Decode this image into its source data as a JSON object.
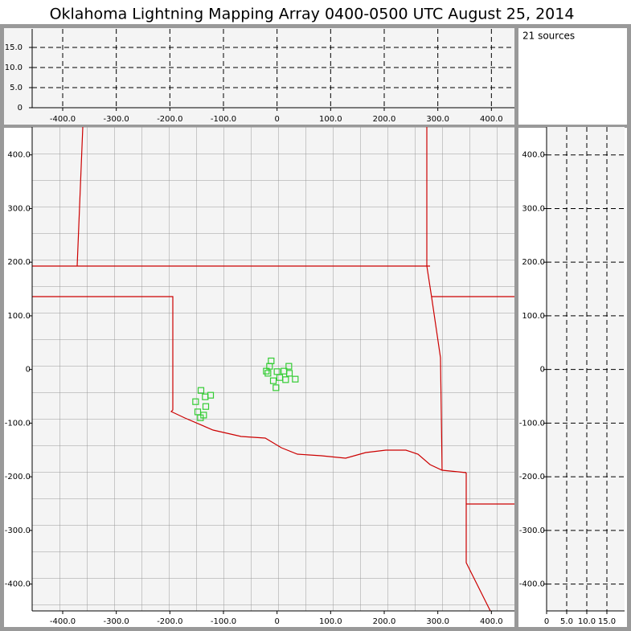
{
  "chart_data": [
    {
      "type": "scatter",
      "title": "Oklahoma Lightning Mapping Array   0400-0500 UTC  August 25, 2014",
      "annotation": "21 sources",
      "color": "#33cc33",
      "x": [
        -11,
        -14,
        -17,
        0,
        22,
        23,
        16,
        34,
        -7,
        -2,
        -20,
        13,
        5,
        -142,
        -134,
        -124,
        -152,
        -133,
        -148,
        -143,
        -137
      ],
      "y": [
        16,
        6,
        -7,
        -4,
        6,
        -7,
        -19,
        -18,
        -21,
        -34,
        -3,
        -3,
        -15,
        -39,
        -51,
        -48,
        -60,
        -69,
        -79,
        -90,
        -85
      ],
      "xlim": [
        -457,
        443
      ],
      "ylim": [
        -450,
        452
      ],
      "xticks": [
        {
          "value": -400,
          "label": "-400.0"
        },
        {
          "value": -300,
          "label": "-300.0"
        },
        {
          "value": -200,
          "label": "-200.0"
        },
        {
          "value": -100,
          "label": "-100.0"
        },
        0,
        {
          "value": 100,
          "label": "100.0"
        },
        {
          "value": 200,
          "label": "200.0"
        },
        {
          "value": 300,
          "label": "300.0"
        },
        {
          "value": 400,
          "label": "400.0"
        }
      ],
      "yticks": [
        {
          "value": -400,
          "label": "-400.0"
        },
        {
          "value": -300,
          "label": "-300.0"
        },
        {
          "value": -200,
          "label": "-200.0"
        },
        {
          "value": -100,
          "label": "-100.0"
        },
        0,
        {
          "value": 100,
          "label": "100.0"
        },
        {
          "value": 200,
          "label": "200.0"
        },
        {
          "value": 300,
          "label": "300.0"
        },
        {
          "value": 400,
          "label": "400.0"
        }
      ]
    },
    {
      "type": "scatter",
      "grid": true,
      "xlim": [
        -457,
        443
      ],
      "ylim": [
        0,
        19.6
      ],
      "xticks": [
        {
          "value": -400,
          "label": "-400.0"
        },
        {
          "value": -300,
          "label": "-300.0"
        },
        {
          "value": -200,
          "label": "-200.0"
        },
        {
          "value": -100,
          "label": "-100.0"
        },
        0,
        {
          "value": 100,
          "label": "100.0"
        },
        {
          "value": 200,
          "label": "200.0"
        },
        {
          "value": 300,
          "label": "300.0"
        },
        {
          "value": 400,
          "label": "400.0"
        }
      ],
      "yticks": [
        0,
        {
          "value": 5,
          "label": "5.0"
        },
        {
          "value": 10,
          "label": "10.0"
        },
        {
          "value": 15,
          "label": "15.0"
        }
      ]
    },
    {
      "type": "scatter",
      "grid": true,
      "xlim": [
        0,
        19.4
      ],
      "ylim": [
        -450,
        452
      ],
      "xticks": [
        0,
        {
          "value": 5,
          "label": "5.0"
        },
        {
          "value": 10,
          "label": "10.0"
        },
        {
          "value": 15,
          "label": "15.0"
        }
      ],
      "yticks": [
        {
          "value": -400,
          "label": "-400.0"
        },
        {
          "value": -300,
          "label": "-300.0"
        },
        {
          "value": -200,
          "label": "-200.0"
        },
        {
          "value": -100,
          "label": "-100.0"
        },
        0,
        {
          "value": 100,
          "label": "100.0"
        },
        {
          "value": 200,
          "label": "200.0"
        },
        {
          "value": 300,
          "label": "300.0"
        },
        {
          "value": 400,
          "label": "400.0"
        }
      ]
    }
  ]
}
